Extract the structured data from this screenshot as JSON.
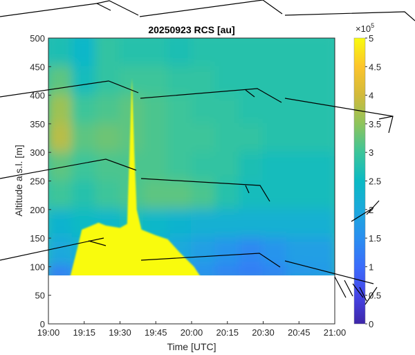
{
  "chart_data": {
    "type": "heatmap",
    "title": "20250923 RCS [au]",
    "xlabel": "Time [UTC]",
    "ylabel": "Altitude a.s.l. [m]",
    "xlim": [
      "19:00",
      "21:00"
    ],
    "ylim": [
      0,
      500
    ],
    "x_ticks": [
      "19:00",
      "19:15",
      "19:30",
      "19:45",
      "20:00",
      "20:15",
      "20:30",
      "20:45",
      "21:00"
    ],
    "y_ticks": [
      0,
      50,
      100,
      150,
      200,
      250,
      300,
      350,
      400,
      450,
      500
    ],
    "colorbar": {
      "ticks": [
        "0",
        "0.5",
        "1",
        "1.5",
        "2",
        "2.5",
        "3",
        "3.5",
        "4",
        "4.5",
        "5"
      ],
      "exponent_label": "×10",
      "exponent": "5",
      "range": [
        0,
        5
      ],
      "colormap": "parula"
    },
    "grid": false,
    "time_bin_centers": [
      "19:05",
      "19:15",
      "19:25",
      "19:35",
      "19:45",
      "19:55",
      "20:05",
      "20:15",
      "20:25",
      "20:35",
      "20:45",
      "20:55"
    ],
    "altitude_bins": [
      [
        450,
        500
      ],
      [
        400,
        450
      ],
      [
        350,
        400
      ],
      [
        300,
        350
      ],
      [
        250,
        300
      ],
      [
        200,
        250
      ],
      [
        150,
        200
      ],
      [
        100,
        150
      ],
      [
        87,
        100
      ]
    ],
    "values_x1e5": [
      [
        2.7,
        2.4,
        2.9,
        2.8,
        2.8,
        2.7,
        2.8,
        2.8,
        2.8,
        2.8,
        2.8,
        2.8
      ],
      [
        3.2,
        2.6,
        2.9,
        3.0,
        3.0,
        2.9,
        2.9,
        2.8,
        2.8,
        2.8,
        2.8,
        2.8
      ],
      [
        3.6,
        3.0,
        3.1,
        3.2,
        3.1,
        3.0,
        2.9,
        2.9,
        2.8,
        2.8,
        2.8,
        2.8
      ],
      [
        3.8,
        3.2,
        3.3,
        3.2,
        3.1,
        3.0,
        3.0,
        2.9,
        2.9,
        2.8,
        2.8,
        2.8
      ],
      [
        3.2,
        3.0,
        3.1,
        3.1,
        3.1,
        3.0,
        2.9,
        2.9,
        2.7,
        2.6,
        2.6,
        2.6
      ],
      [
        3.0,
        2.8,
        3.0,
        3.1,
        3.2,
        3.2,
        3.1,
        2.8,
        2.6,
        2.6,
        2.6,
        2.6
      ],
      [
        2.3,
        2.5,
        2.4,
        2.6,
        2.4,
        2.3,
        2.2,
        2.2,
        2.2,
        2.2,
        2.2,
        2.2
      ],
      [
        2.0,
        2.2,
        2.3,
        2.4,
        2.3,
        2.0,
        1.8,
        1.6,
        1.4,
        1.6,
        1.8,
        1.8
      ],
      [
        1.2,
        1.6,
        1.9,
        2.0,
        1.9,
        1.7,
        1.5,
        1.3,
        1.2,
        1.3,
        1.6,
        1.7
      ]
    ],
    "saturated_region": [
      [
        "19:09",
        87
      ],
      [
        "19:12",
        130
      ],
      [
        "19:14",
        165
      ],
      [
        "19:17",
        170
      ],
      [
        "19:21",
        177
      ],
      [
        "19:24",
        172
      ],
      [
        "19:30",
        168
      ],
      [
        "19:33",
        175
      ],
      [
        "19:34",
        300
      ],
      [
        "19:35",
        430
      ],
      [
        "19:36",
        300
      ],
      [
        "19:37",
        200
      ],
      [
        "19:39",
        165
      ],
      [
        "19:45",
        155
      ],
      [
        "19:50",
        148
      ],
      [
        "19:55",
        125
      ],
      [
        "20:01",
        100
      ],
      [
        "20:04",
        87
      ]
    ],
    "no_data_below_m": 87
  }
}
